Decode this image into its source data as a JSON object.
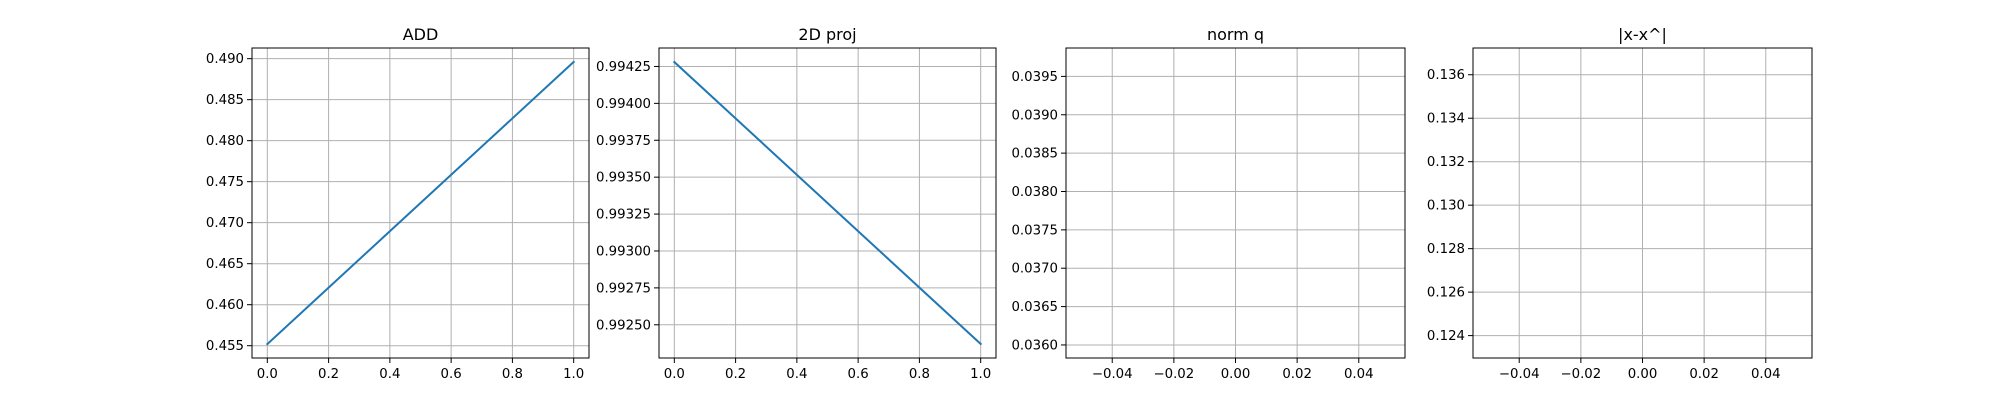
{
  "chart_data": [
    {
      "type": "line",
      "title": "ADD",
      "xlabel": "",
      "ylabel": "",
      "x": [
        0.0,
        1.0
      ],
      "series": [
        {
          "values": [
            0.4552,
            0.4896
          ],
          "color": "#1f77b4"
        }
      ],
      "xlim": [
        -0.05,
        1.05
      ],
      "ylim": [
        0.4535,
        0.4913
      ],
      "xticks": [
        0.0,
        0.2,
        0.4,
        0.6,
        0.8,
        1.0
      ],
      "xtick_labels": [
        "0.0",
        "0.2",
        "0.4",
        "0.6",
        "0.8",
        "1.0"
      ],
      "yticks": [
        0.455,
        0.46,
        0.465,
        0.47,
        0.475,
        0.48,
        0.485,
        0.49
      ],
      "ytick_labels": [
        "0.455",
        "0.460",
        "0.465",
        "0.470",
        "0.475",
        "0.480",
        "0.485",
        "0.490"
      ],
      "grid": true
    },
    {
      "type": "line",
      "title": "2D proj",
      "xlabel": "",
      "ylabel": "",
      "x": [
        0.0,
        1.0
      ],
      "series": [
        {
          "values": [
            0.99428,
            0.99237
          ],
          "color": "#1f77b4"
        }
      ],
      "xlim": [
        -0.05,
        1.05
      ],
      "ylim": [
        0.992275,
        0.994375
      ],
      "xticks": [
        0.0,
        0.2,
        0.4,
        0.6,
        0.8,
        1.0
      ],
      "xtick_labels": [
        "0.0",
        "0.2",
        "0.4",
        "0.6",
        "0.8",
        "1.0"
      ],
      "yticks": [
        0.9925,
        0.99275,
        0.993,
        0.99325,
        0.9935,
        0.99375,
        0.994,
        0.99425
      ],
      "ytick_labels": [
        "0.99250",
        "0.99275",
        "0.99300",
        "0.99325",
        "0.99350",
        "0.99375",
        "0.99400",
        "0.99425"
      ],
      "grid": true
    },
    {
      "type": "line",
      "title": "norm q",
      "xlabel": "",
      "ylabel": "",
      "x": [],
      "series": [],
      "xlim": [
        -0.055,
        0.055
      ],
      "ylim": [
        0.03583,
        0.03987
      ],
      "xticks": [
        -0.04,
        -0.02,
        0.0,
        0.02,
        0.04
      ],
      "xtick_labels": [
        "−0.04",
        "−0.02",
        "0.00",
        "0.02",
        "0.04"
      ],
      "yticks": [
        0.036,
        0.0365,
        0.037,
        0.0375,
        0.038,
        0.0385,
        0.039,
        0.0395
      ],
      "ytick_labels": [
        "0.0360",
        "0.0365",
        "0.0370",
        "0.0375",
        "0.0380",
        "0.0385",
        "0.0390",
        "0.0395"
      ],
      "grid": true
    },
    {
      "type": "line",
      "title": "|x-x^|",
      "xlabel": "",
      "ylabel": "",
      "x": [],
      "series": [],
      "xlim": [
        -0.055,
        0.055
      ],
      "ylim": [
        0.12297,
        0.13723
      ],
      "xticks": [
        -0.04,
        -0.02,
        0.0,
        0.02,
        0.04
      ],
      "xtick_labels": [
        "−0.04",
        "−0.02",
        "0.00",
        "0.02",
        "0.04"
      ],
      "yticks": [
        0.124,
        0.126,
        0.128,
        0.13,
        0.132,
        0.134,
        0.136
      ],
      "ytick_labels": [
        "0.124",
        "0.126",
        "0.128",
        "0.130",
        "0.132",
        "0.134",
        "0.136"
      ],
      "grid": true
    }
  ]
}
